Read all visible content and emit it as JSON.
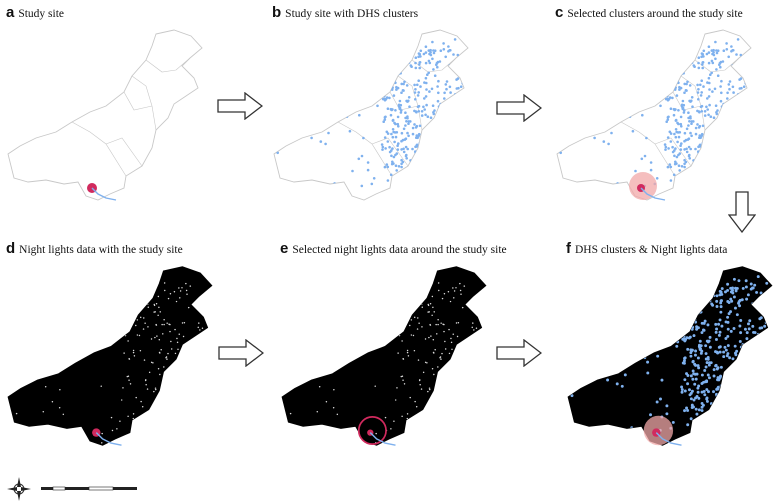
{
  "panels": {
    "a": {
      "letter": "a",
      "title": "Study site"
    },
    "b": {
      "letter": "b",
      "title": "Study site with DHS clusters"
    },
    "c": {
      "letter": "c",
      "title": "Selected clusters around the study site"
    },
    "d": {
      "letter": "d",
      "title": "Night lights data with the study site"
    },
    "e": {
      "letter": "e",
      "title": "Selected night lights data around the study site"
    },
    "f": {
      "letter": "f",
      "title": "DHS clusters & Night lights data"
    }
  },
  "colors": {
    "outline": "#c8c8c8",
    "dhs_cluster": "#7fb1ee",
    "study_site": "#d12a5e",
    "selection_zone": "#f2a8a8",
    "night_background": "#000000",
    "night_lights": "#d9d9d9",
    "arrow_stroke": "#333333"
  },
  "icons": {
    "north_arrow": "compass-rose-icon",
    "flow_arrow": "hollow-arrow-icon"
  }
}
